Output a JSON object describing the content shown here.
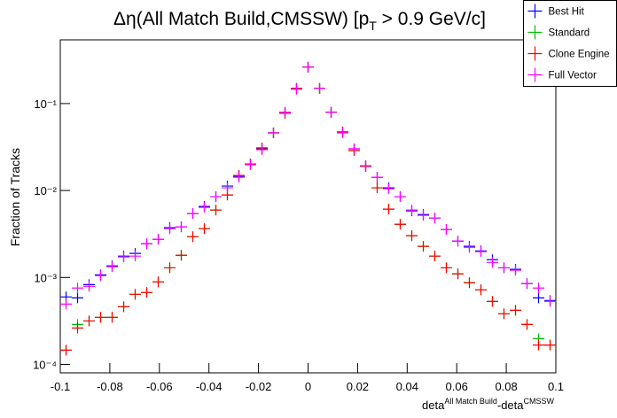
{
  "chart_data": {
    "type": "histogram",
    "title": [
      "Δη(All Match Build,CMSSW) [p",
      "T",
      " > 0.9 GeV/c]"
    ],
    "x_label": [
      "deta",
      "All Match Build",
      "-deta",
      "CMSSW"
    ],
    "y_label": "Fraction of Tracks",
    "log_y": true,
    "grid": false,
    "legend": "top-right",
    "bins": [
      -0.1,
      -0.09535,
      -0.0907,
      -0.08605,
      -0.0814,
      -0.07674,
      -0.07209,
      -0.06744,
      -0.06279,
      -0.05814,
      -0.05349,
      -0.04884,
      -0.04419,
      -0.03953,
      -0.03488,
      -0.03023,
      -0.02558,
      -0.02093,
      -0.01628,
      -0.01163,
      -0.00698,
      -0.00233,
      0.00233,
      0.00698,
      0.01163,
      0.01628,
      0.02093,
      0.02558,
      0.03023,
      0.03488,
      0.03953,
      0.04419,
      0.04884,
      0.05349,
      0.05814,
      0.06279,
      0.06744,
      0.07209,
      0.07674,
      0.0814,
      0.08605,
      0.0907,
      0.09535,
      0.1
    ],
    "series": [
      {
        "name": "Best Hit",
        "color": "#0000ff",
        "values": [
          0.000597,
          0.000582,
          0.000828,
          0.00107,
          0.00136,
          0.00176,
          0.00189,
          0.00244,
          0.00275,
          0.00373,
          0.00382,
          0.00543,
          0.00655,
          0.00849,
          0.01125,
          0.01456,
          0.0202,
          0.0302,
          0.046,
          0.0791,
          0.149,
          0.262,
          0.149,
          0.0791,
          0.0471,
          0.0302,
          0.0193,
          0.01422,
          0.01074,
          0.00849,
          0.00582,
          0.0053,
          0.00483,
          0.00356,
          0.00262,
          0.00228,
          0.00202,
          0.0016,
          0.00129,
          0.00124,
          0.000849,
          0.000582,
          0.000543
        ]
      },
      {
        "name": "Standard",
        "color": "#00c000",
        "values": [
          0.000146,
          0.000288,
          0.000316,
          0.000348,
          0.000348,
          0.00046,
          0.00064,
          0.000671,
          0.000889,
          0.00129,
          0.0018,
          0.00294,
          0.00364,
          0.00597,
          0.00889,
          0.0149,
          0.0202,
          0.0309,
          0.046,
          0.0773,
          0.149,
          0.262,
          0.149,
          0.0791,
          0.0471,
          0.0288,
          0.0189,
          0.01074,
          0.00611,
          0.00409,
          0.00302,
          0.00228,
          0.00176,
          0.00129,
          0.0011,
          0.000869,
          0.00072,
          0.00053,
          0.000382,
          0.000419,
          0.000288,
          0.000198,
          0.000167
        ]
      },
      {
        "name": "Clone Engine",
        "color": "#ff0000",
        "values": [
          0.000146,
          0.000262,
          0.000316,
          0.000348,
          0.000348,
          0.00046,
          0.00064,
          0.000671,
          0.000889,
          0.00129,
          0.0018,
          0.00294,
          0.00364,
          0.00597,
          0.00889,
          0.0149,
          0.0202,
          0.0309,
          0.046,
          0.0773,
          0.149,
          0.262,
          0.149,
          0.0791,
          0.0471,
          0.0288,
          0.0189,
          0.01074,
          0.00611,
          0.00409,
          0.00302,
          0.00228,
          0.00176,
          0.00129,
          0.0011,
          0.000869,
          0.00072,
          0.00053,
          0.000382,
          0.000419,
          0.000288,
          0.000167,
          0.000167
        ]
      },
      {
        "name": "Full Vector",
        "color": "#ff00ff",
        "values": [
          0.000494,
          0.000755,
          0.000791,
          0.00105,
          0.00133,
          0.00172,
          0.00176,
          0.00244,
          0.00275,
          0.00364,
          0.00382,
          0.00543,
          0.0064,
          0.00849,
          0.01074,
          0.01422,
          0.0198,
          0.0295,
          0.046,
          0.0791,
          0.146,
          0.262,
          0.149,
          0.0791,
          0.046,
          0.0302,
          0.0193,
          0.01422,
          0.01047,
          0.00849,
          0.00597,
          0.00518,
          0.00483,
          0.00356,
          0.00262,
          0.00222,
          0.00198,
          0.00149,
          0.00129,
          0.00121,
          0.000849,
          0.000755,
          0.00053
        ]
      }
    ],
    "xlim": [
      -0.1,
      0.1
    ],
    "xticks": [
      -0.1,
      -0.08,
      -0.06,
      -0.04,
      -0.02,
      0,
      0.02,
      0.04,
      0.06,
      0.08,
      0.1
    ],
    "ylim": [
      8e-05,
      0.54
    ],
    "yticks": [
      {
        "value": 0.0001,
        "label": "10⁻⁴"
      },
      {
        "value": 0.001,
        "label": "10⁻³"
      },
      {
        "value": 0.01,
        "label": "10⁻²"
      },
      {
        "value": 0.1,
        "label": "10⁻¹"
      }
    ]
  }
}
